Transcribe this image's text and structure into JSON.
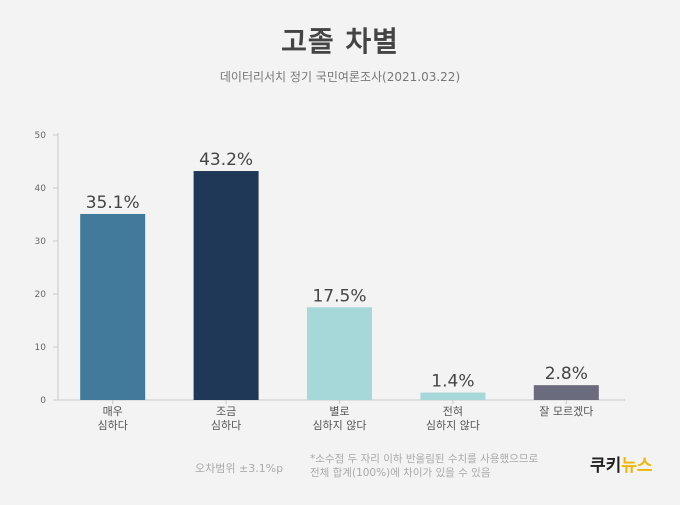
{
  "header": {
    "title": "고졸 차별",
    "subtitle": "데이터리서치 정기 국민여론조사(2021.03.22)"
  },
  "chart_data": {
    "type": "bar",
    "categories": [
      [
        "매우",
        "심하다"
      ],
      [
        "조금",
        "심하다"
      ],
      [
        "별로",
        "심하지 않다"
      ],
      [
        "전혀",
        "심하지 않다"
      ],
      [
        "잘 모르겠다"
      ]
    ],
    "values": [
      35.1,
      43.2,
      17.5,
      1.4,
      2.8
    ],
    "data_labels": [
      "35.1%",
      "43.2%",
      "17.5%",
      "1.4%",
      "2.8%"
    ],
    "colors": [
      "#427a9c",
      "#1f3857",
      "#a6d8da",
      "#a6d8da",
      "#6a6b7c"
    ],
    "yticks": [
      0,
      10,
      20,
      30,
      40,
      50
    ],
    "ylim": [
      0,
      50
    ],
    "grid": false
  },
  "footer": {
    "margin_of_error": "오차범위 ±3.1%p",
    "note_line1": "*소수점 두 자리 이하 반올림된 수치를 사용했으므로",
    "note_line2": "전체 합계(100%)에 차이가 있을 수 있음",
    "brand_part1": "쿠키",
    "brand_part2": "뉴스"
  }
}
